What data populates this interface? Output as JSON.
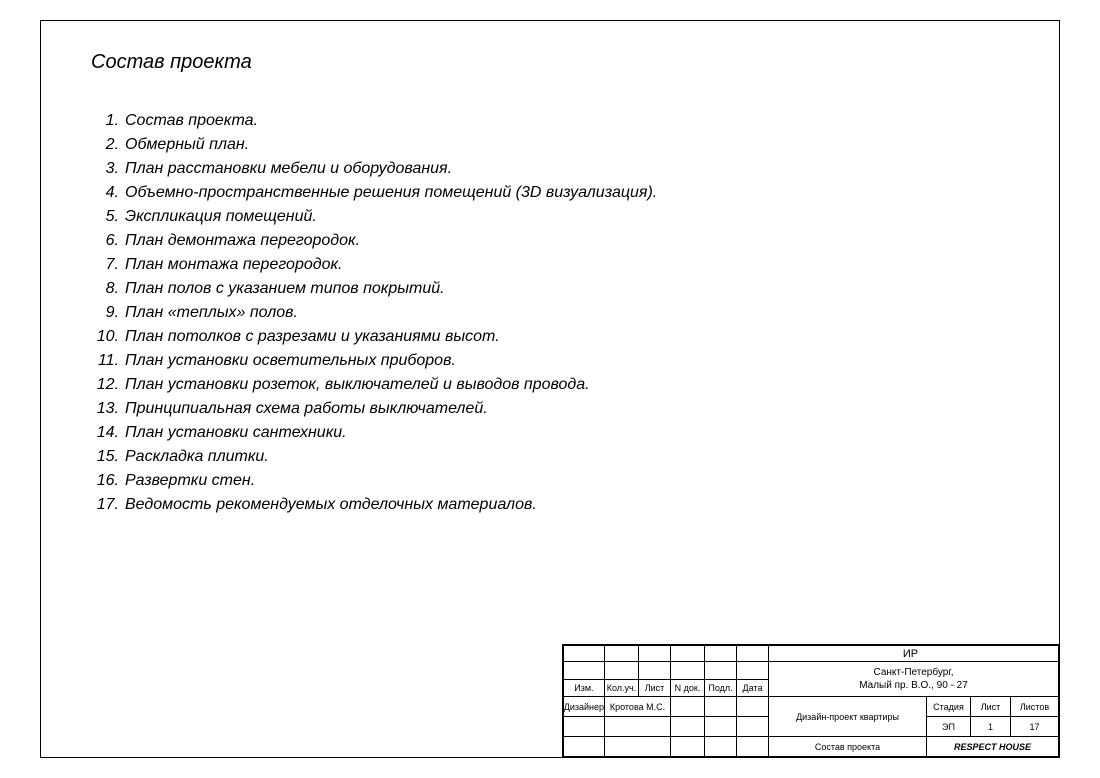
{
  "title": "Состав проекта",
  "items": [
    {
      "num": "1.",
      "text": "Состав проекта."
    },
    {
      "num": "2.",
      "text": "Обмерный план."
    },
    {
      "num": "3.",
      "text": "План расстановки мебели и оборудования."
    },
    {
      "num": "4.",
      "text": "Объемно-пространственные решения помещений (3D визуализация)."
    },
    {
      "num": "5.",
      "text": "Экспликация помещений."
    },
    {
      "num": "6.",
      "text": "План демонтажа перегородок."
    },
    {
      "num": "7.",
      "text": "План монтажа перегородок."
    },
    {
      "num": "8.",
      "text": "План полов с указанием типов покрытий."
    },
    {
      "num": "9.",
      "text": "План «теплых» полов."
    },
    {
      "num": "10.",
      "text": " План потолков с разрезами и указаниями высот."
    },
    {
      "num": "11.",
      "text": " План установки осветительных приборов."
    },
    {
      "num": "12.",
      "text": " План установки розеток, выключателей и выводов провода."
    },
    {
      "num": "13.",
      "text": " Принципиальная схема работы выключателей."
    },
    {
      "num": "14.",
      "text": " План установки сантехники."
    },
    {
      "num": "15.",
      "text": " Раскладка плитки."
    },
    {
      "num": "16.",
      "text": " Развертки стен."
    },
    {
      "num": "17.",
      "text": " Ведомость рекомендуемых отделочных материалов."
    }
  ],
  "titleblock": {
    "code": "ИР",
    "address_line1": "Санкт-Петербург,",
    "address_line2": "Малый пр. В.О., 90 - 27",
    "headers": {
      "izm": "Изм.",
      "koluch": "Кол.уч.",
      "list": "Лист",
      "ndok": "N док.",
      "podl": "Подл.",
      "data": "Дата"
    },
    "role": "Дизайнер",
    "designer": "Кротова М.С.",
    "project": "Дизайн-проект квартиры",
    "stage_hdrs": {
      "stadia": "Стадия",
      "list": "Лист",
      "listov": "Листов"
    },
    "stage_vals": {
      "stadia": "ЭП",
      "list": "1",
      "listov": "17"
    },
    "sheet_name": "Состав проекта",
    "company": "RESPECT HOUSE"
  }
}
